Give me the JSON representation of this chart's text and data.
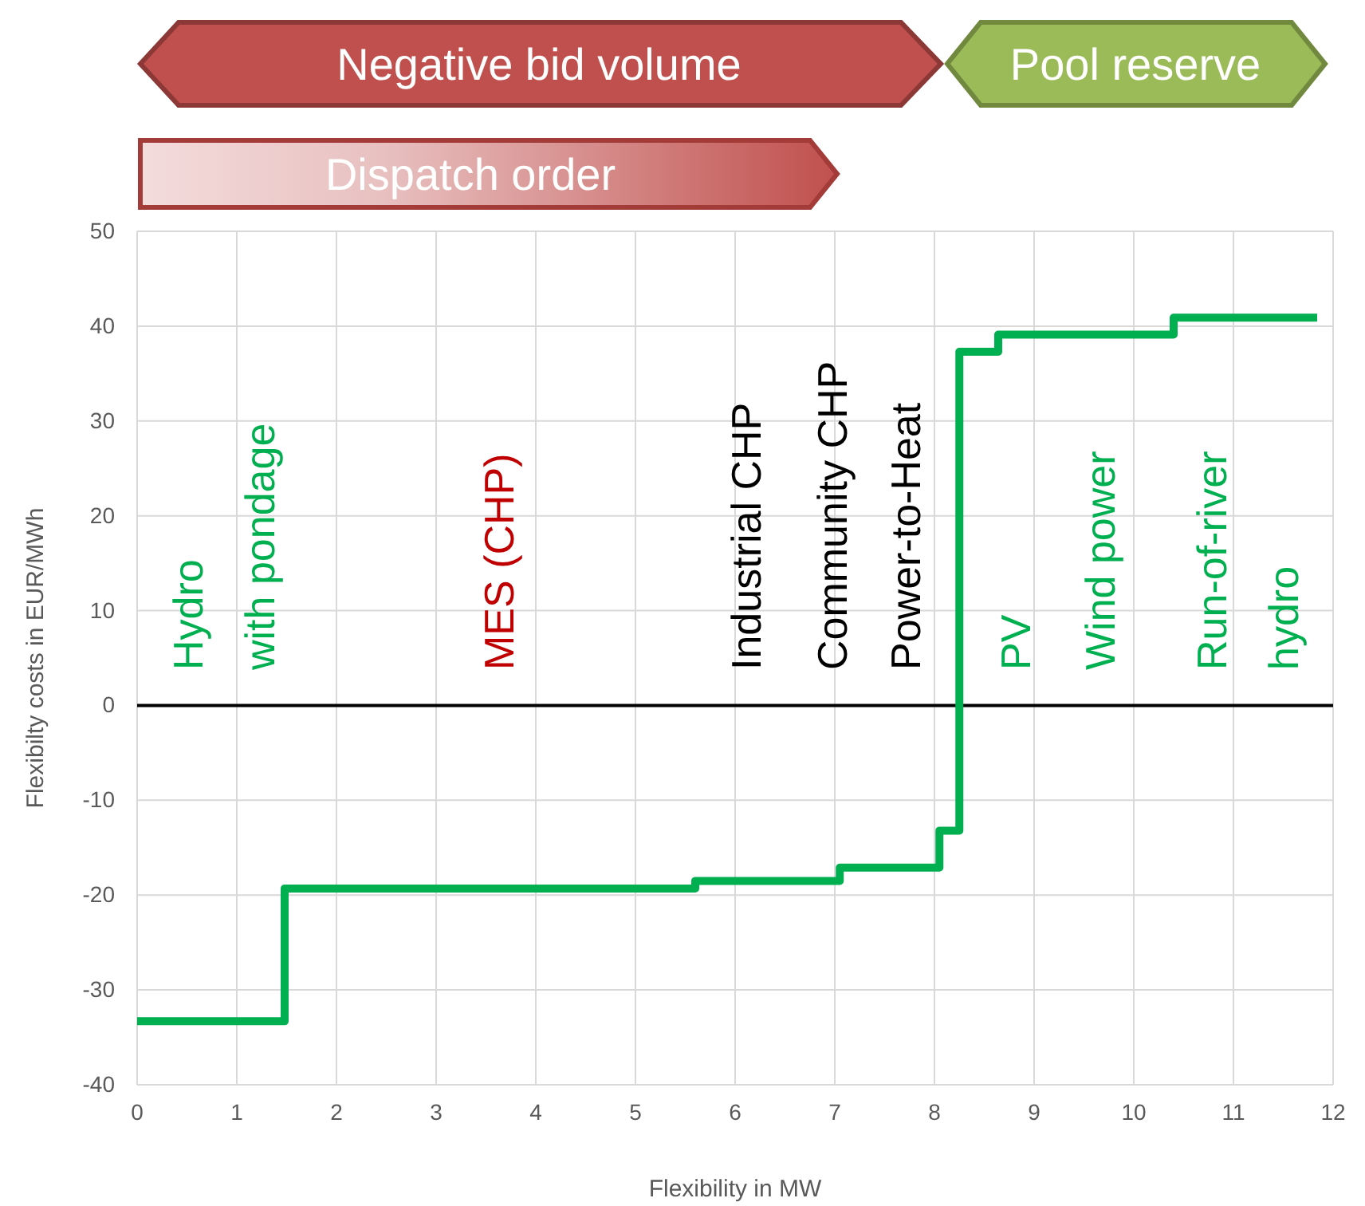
{
  "chart_data": {
    "type": "step",
    "xlabel": "Flexibility in MW",
    "ylabel": "Flexibilty costs in EUR/MWh",
    "x": [
      0,
      1.48,
      5.6,
      7.05,
      8.05,
      8.25,
      8.64,
      10.4,
      11.84
    ],
    "series": [
      {
        "color": "#00b050",
        "values": [
          -33.3,
          -19.3,
          -18.5,
          -17.1,
          -13.2,
          37.3,
          39.1,
          40.9,
          40.9
        ]
      }
    ],
    "xlim": [
      0,
      12
    ],
    "xticks": [
      0,
      1,
      2,
      3,
      4,
      5,
      6,
      7,
      8,
      9,
      10,
      11,
      12
    ],
    "ylim": [
      -40,
      50
    ],
    "yticks": [
      -40,
      -30,
      -20,
      -10,
      0,
      10,
      20,
      30,
      40,
      50
    ],
    "grid": true,
    "ref_lines": [
      {
        "axis": "y",
        "value": 0,
        "color": "#000000"
      }
    ],
    "annotations": [
      "Negative bid volume",
      "Pool reserve",
      "Dispatch order",
      "Hydro\nwith pondage",
      "MES (CHP)",
      "Industrial CHP",
      "Community CHP",
      "Power-to-Heat",
      "PV",
      "Wind power",
      "Run-of-river\nhydro"
    ]
  }
}
